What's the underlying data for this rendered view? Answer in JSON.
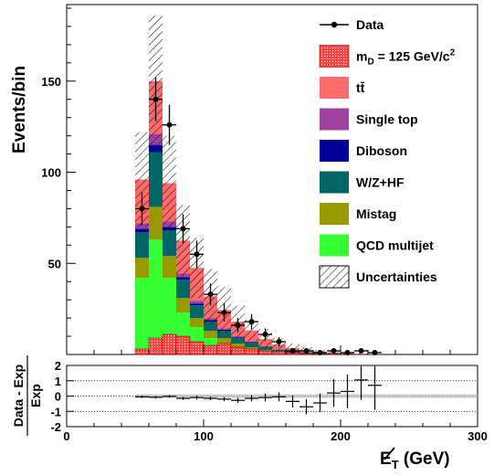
{
  "chart_data": [
    {
      "type": "bar",
      "stacked": true,
      "ylabel": "Events/bin",
      "xlim": [
        0,
        300
      ],
      "ylim": [
        0,
        192
      ],
      "y_ticks": [
        50,
        100,
        150
      ],
      "bin_width": 10,
      "bin_edges": [
        50,
        60,
        70,
        80,
        90,
        100,
        110,
        120,
        130,
        140,
        150,
        160,
        170,
        180,
        190,
        200,
        210,
        220,
        230
      ],
      "colors": {
        "ttbar": "#ff6b6b",
        "single_top": "#a040a0",
        "diboson": "#000099",
        "wzhf": "#006666",
        "mistag": "#999900",
        "qcd": "#33ff33",
        "signal": "#ff4040"
      },
      "series": [
        {
          "key": "qcd",
          "name": "QCD multijet",
          "values": [
            42,
            63,
            42,
            23,
            15,
            9,
            6,
            4,
            2.5,
            1.5,
            1,
            0.5,
            0.3,
            0.2,
            0.1,
            0.1,
            0,
            0
          ]
        },
        {
          "key": "mistag",
          "name": "Mistag",
          "values": [
            11,
            18,
            12,
            8,
            5,
            4,
            3,
            2,
            1.5,
            1,
            0.6,
            0.4,
            0.3,
            0.2,
            0.1,
            0.1,
            0,
            0
          ]
        },
        {
          "key": "wzhf",
          "name": "W/Z+HF",
          "values": [
            14,
            30,
            14,
            10,
            7,
            5,
            4,
            3,
            2.5,
            1.5,
            1,
            0.8,
            0.5,
            0.3,
            0.2,
            0.1,
            0.1,
            0
          ]
        },
        {
          "key": "diboson",
          "name": "Diboson",
          "values": [
            2,
            4,
            2,
            1.5,
            1,
            0.8,
            0.6,
            0.4,
            0.3,
            0.2,
            0.1,
            0.1,
            0.1,
            0,
            0,
            0,
            0,
            0
          ]
        },
        {
          "key": "single_top",
          "name": "Single top",
          "values": [
            3,
            6,
            3,
            2,
            1.5,
            1,
            0.8,
            0.6,
            0.4,
            0.3,
            0.2,
            0.2,
            0.1,
            0.1,
            0.1,
            0,
            0,
            0
          ]
        },
        {
          "key": "ttbar",
          "name": "tt̄",
          "values": [
            24,
            29,
            21,
            18,
            18,
            12,
            10,
            8,
            6,
            4,
            2.5,
            1.5,
            1,
            0.7,
            0.5,
            0.3,
            0.2,
            0.1
          ]
        }
      ],
      "signal": {
        "name": "m_D = 125 GeV/c^2",
        "values": [
          3,
          9,
          11,
          10,
          7,
          5,
          6,
          4,
          3,
          2,
          1.5,
          1,
          0.5,
          0.3,
          0.2,
          0.1,
          0.1,
          0
        ]
      },
      "uncertainty_band": {
        "name": "Uncertainties",
        "upper": [
          122,
          186,
          120,
          82,
          64,
          47,
          37,
          27,
          19,
          14,
          9,
          6,
          4,
          2.5,
          2,
          1.5,
          1,
          0.5
        ]
      },
      "data": {
        "name": "Data",
        "x": [
          55,
          65,
          75,
          85,
          95,
          105,
          115,
          125,
          135,
          145,
          155,
          165,
          175,
          185,
          195,
          205,
          215,
          225
        ],
        "y": [
          80,
          140,
          126,
          69,
          55,
          33,
          23,
          16,
          18,
          11,
          7,
          2,
          2,
          1,
          2,
          1,
          2,
          1
        ],
        "err": [
          9,
          12,
          11,
          8,
          7.5,
          6,
          5,
          4,
          4.2,
          3.3,
          2.6,
          1.4,
          1.4,
          1,
          1.4,
          1,
          1.4,
          1
        ]
      },
      "legend": {
        "placement": "top-right",
        "entries": [
          {
            "label": "Data",
            "style": "marker"
          },
          {
            "label": "m",
            "sub": "D",
            "rest": " = 125 GeV/c",
            "sup": "2",
            "style": "signal"
          },
          {
            "label": "tt̄",
            "style": "fill",
            "key": "ttbar"
          },
          {
            "label": "Single top",
            "style": "fill",
            "key": "single_top"
          },
          {
            "label": "Diboson",
            "style": "fill",
            "key": "diboson"
          },
          {
            "label": "W/Z+HF",
            "style": "fill",
            "key": "wzhf"
          },
          {
            "label": "Mistag",
            "style": "fill",
            "key": "mistag"
          },
          {
            "label": "QCD multijet",
            "style": "fill",
            "key": "qcd"
          },
          {
            "label": "Uncertainties",
            "style": "hatch"
          }
        ]
      }
    },
    {
      "type": "scatter",
      "ylabel_num": "Data - Exp",
      "ylabel_den": "Exp",
      "xlabel": "E",
      "xlabel_sub": "T",
      "xlabel_unit": " (GeV)",
      "xlim": [
        0,
        300
      ],
      "ylim": [
        -2,
        2
      ],
      "x_ticks": [
        0,
        100,
        200,
        300
      ],
      "y_ticks": [
        -2,
        -1,
        0,
        1,
        2
      ],
      "dotted_lines": [
        -1,
        0,
        1
      ],
      "band_halfwidth": 0.12,
      "x": [
        55,
        65,
        75,
        85,
        95,
        105,
        115,
        125,
        135,
        145,
        155,
        165,
        175,
        185,
        195,
        205,
        215,
        225
      ],
      "y": [
        -0.05,
        -0.08,
        -0.02,
        -0.15,
        -0.1,
        -0.15,
        -0.2,
        -0.28,
        -0.15,
        -0.1,
        -0.05,
        -0.35,
        -0.7,
        -0.45,
        0.2,
        0.3,
        1.05,
        0.7
      ],
      "err": [
        0.08,
        0.08,
        0.09,
        0.1,
        0.12,
        0.12,
        0.14,
        0.16,
        0.2,
        0.25,
        0.3,
        0.4,
        0.5,
        0.6,
        0.9,
        1.1,
        1.3,
        1.6
      ]
    }
  ]
}
